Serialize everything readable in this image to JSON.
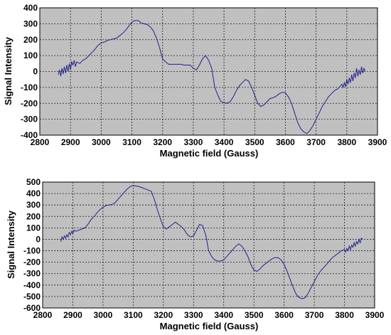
{
  "chart_data": [
    {
      "type": "line",
      "title": "",
      "xlabel": "Magnetic field (Gauss)",
      "ylabel": "Signal Intensity",
      "xlim": [
        2800,
        3900
      ],
      "ylim": [
        -400,
        400
      ],
      "xticks": [
        2800,
        2900,
        3000,
        3100,
        3200,
        3300,
        3400,
        3500,
        3600,
        3700,
        3800,
        3900
      ],
      "yticks": [
        400,
        300,
        200,
        100,
        0,
        -100,
        -200,
        -300,
        -400
      ],
      "grid": true,
      "background": "#c0c0c0",
      "line_color": "#22228a",
      "series": [
        {
          "x": [
            2860,
            2864,
            2868,
            2872,
            2876,
            2880,
            2884,
            2888,
            2892,
            2896,
            2900,
            2904,
            2908,
            2912,
            2916,
            2920,
            2930,
            2940,
            2950,
            2960,
            2970,
            2980,
            2990,
            3000,
            3010,
            3020,
            3030,
            3040,
            3050,
            3060,
            3070,
            3080,
            3090,
            3100,
            3110,
            3120,
            3130,
            3140,
            3150,
            3160,
            3170,
            3180,
            3190,
            3200,
            3210,
            3220,
            3230,
            3240,
            3250,
            3260,
            3270,
            3280,
            3290,
            3300,
            3310,
            3320,
            3330,
            3340,
            3350,
            3360,
            3370,
            3380,
            3390,
            3400,
            3410,
            3420,
            3430,
            3440,
            3450,
            3460,
            3470,
            3480,
            3490,
            3500,
            3510,
            3520,
            3530,
            3540,
            3550,
            3560,
            3570,
            3580,
            3590,
            3600,
            3610,
            3620,
            3630,
            3640,
            3650,
            3660,
            3670,
            3680,
            3690,
            3700,
            3710,
            3720,
            3730,
            3740,
            3750,
            3760,
            3770,
            3780,
            3784,
            3788,
            3792,
            3796,
            3800,
            3804,
            3808,
            3812,
            3816,
            3820,
            3824,
            3828,
            3832,
            3836,
            3840,
            3844,
            3848,
            3852,
            3856,
            3860
          ],
          "y": [
            -20,
            10,
            -30,
            20,
            -15,
            30,
            -10,
            40,
            0,
            50,
            10,
            60,
            40,
            70,
            30,
            60,
            50,
            70,
            80,
            100,
            120,
            140,
            165,
            180,
            185,
            195,
            200,
            205,
            210,
            225,
            240,
            260,
            285,
            310,
            320,
            320,
            305,
            300,
            295,
            280,
            255,
            210,
            150,
            80,
            60,
            45,
            45,
            45,
            45,
            45,
            40,
            40,
            40,
            20,
            10,
            40,
            80,
            100,
            70,
            20,
            -100,
            -150,
            -190,
            -195,
            -200,
            -190,
            -160,
            -120,
            -90,
            -70,
            -50,
            -60,
            -100,
            -150,
            -200,
            -220,
            -210,
            -190,
            -170,
            -165,
            -155,
            -140,
            -130,
            -135,
            -160,
            -200,
            -260,
            -320,
            -360,
            -380,
            -390,
            -370,
            -340,
            -300,
            -260,
            -220,
            -190,
            -160,
            -140,
            -120,
            -110,
            -90,
            -80,
            -100,
            -70,
            -95,
            -50,
            -80,
            -40,
            -70,
            -20,
            -60,
            -10,
            -40,
            20,
            -30,
            10,
            -20,
            30,
            -10,
            20,
            0
          ]
        }
      ]
    },
    {
      "type": "line",
      "title": "",
      "xlabel": "Magnetic field (Gauss)",
      "ylabel": "Signal Intensity",
      "xlim": [
        2800,
        3900
      ],
      "ylim": [
        -600,
        500
      ],
      "xticks": [
        2800,
        2900,
        3000,
        3100,
        3200,
        3300,
        3400,
        3500,
        3600,
        3700,
        3800,
        3900
      ],
      "yticks": [
        500,
        400,
        300,
        200,
        100,
        0,
        -100,
        -200,
        -300,
        -400,
        -500,
        -600
      ],
      "grid": true,
      "background": "#c0c0c0",
      "line_color": "#22228a",
      "series": [
        {
          "x": [
            2860,
            2864,
            2868,
            2872,
            2876,
            2880,
            2884,
            2888,
            2892,
            2896,
            2900,
            2904,
            2910,
            2920,
            2930,
            2940,
            2950,
            2960,
            2970,
            2980,
            2990,
            3000,
            3010,
            3020,
            3030,
            3040,
            3050,
            3060,
            3070,
            3080,
            3090,
            3100,
            3110,
            3120,
            3130,
            3140,
            3150,
            3160,
            3170,
            3180,
            3190,
            3200,
            3210,
            3220,
            3230,
            3240,
            3250,
            3260,
            3270,
            3280,
            3290,
            3300,
            3310,
            3320,
            3330,
            3340,
            3350,
            3360,
            3370,
            3380,
            3390,
            3400,
            3410,
            3420,
            3430,
            3440,
            3450,
            3460,
            3470,
            3480,
            3490,
            3500,
            3510,
            3520,
            3530,
            3540,
            3550,
            3560,
            3570,
            3580,
            3590,
            3600,
            3610,
            3620,
            3630,
            3640,
            3650,
            3660,
            3670,
            3680,
            3690,
            3700,
            3710,
            3720,
            3730,
            3740,
            3750,
            3760,
            3770,
            3780,
            3790,
            3800,
            3804,
            3808,
            3812,
            3816,
            3820,
            3824,
            3828,
            3832,
            3836,
            3840,
            3844,
            3848,
            3852,
            3856,
            3860
          ],
          "y": [
            -20,
            20,
            0,
            30,
            10,
            40,
            20,
            60,
            40,
            70,
            50,
            80,
            70,
            80,
            90,
            100,
            130,
            170,
            200,
            230,
            260,
            280,
            295,
            300,
            305,
            320,
            350,
            380,
            410,
            440,
            460,
            470,
            465,
            460,
            450,
            440,
            430,
            420,
            350,
            260,
            180,
            110,
            90,
            110,
            130,
            150,
            130,
            110,
            80,
            40,
            20,
            30,
            80,
            130,
            120,
            40,
            -100,
            -150,
            -180,
            -190,
            -190,
            -180,
            -150,
            -120,
            -90,
            -60,
            -40,
            -60,
            -100,
            -150,
            -220,
            -270,
            -280,
            -260,
            -230,
            -210,
            -190,
            -170,
            -160,
            -160,
            -180,
            -220,
            -280,
            -350,
            -420,
            -480,
            -510,
            -520,
            -510,
            -470,
            -420,
            -370,
            -320,
            -280,
            -250,
            -220,
            -190,
            -160,
            -140,
            -120,
            -100,
            -90,
            -110,
            -80,
            -100,
            -60,
            -90,
            -50,
            -70,
            -30,
            -60,
            -20,
            -40,
            0,
            -30,
            10,
            0
          ]
        }
      ]
    }
  ]
}
